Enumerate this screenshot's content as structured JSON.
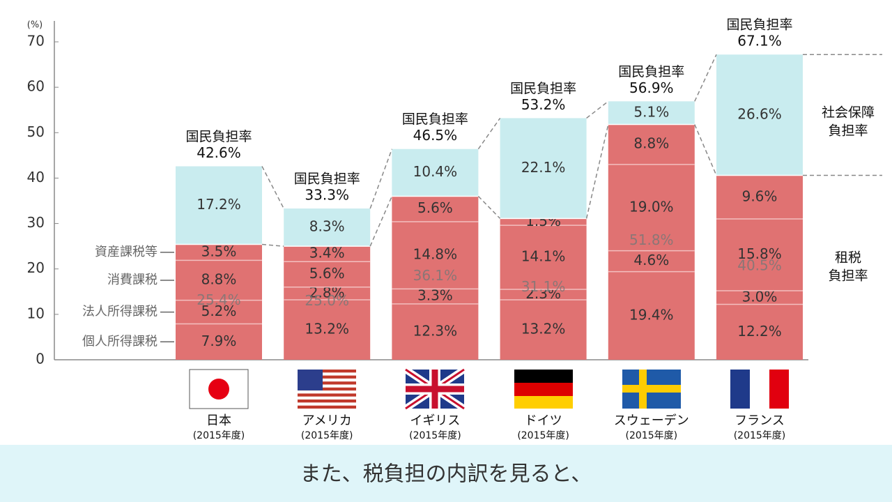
{
  "chart_data": {
    "type": "stacked_bar",
    "y_unit": "(%)",
    "categories": [
      "日本",
      "アメリカ",
      "イギリス",
      "ドイツ",
      "スウェーデン",
      "フランス"
    ],
    "category_notes": [
      "(2015年度)",
      "(2015年度)",
      "(2015年度)",
      "(2015年度)",
      "(2015年度)",
      "(2015年度)"
    ],
    "ylim": [
      0,
      70
    ],
    "yticks": [
      0,
      10,
      20,
      30,
      40,
      50,
      60,
      70
    ],
    "series": [
      {
        "name": "個人所得課税",
        "color": "#e07272",
        "values": [
          7.9,
          13.2,
          12.3,
          13.2,
          19.4,
          12.2
        ],
        "value_labels": [
          "7.9%",
          "13.2%",
          "12.3%",
          "13.2%",
          "19.4%",
          "12.2%"
        ]
      },
      {
        "name": "法人所得課税",
        "color": "#e07272",
        "values": [
          5.2,
          2.8,
          3.3,
          2.3,
          4.6,
          3.0
        ],
        "value_labels": [
          "5.2%",
          "2.8%",
          "3.3%",
          "2.3%",
          "4.6%",
          "3.0%"
        ]
      },
      {
        "name": "消費課税",
        "color": "#e07272",
        "values": [
          8.8,
          5.6,
          14.8,
          14.1,
          19.0,
          15.8
        ],
        "value_labels": [
          "8.8%",
          "5.6%",
          "14.8%",
          "14.1%",
          "19.0%",
          "15.8%"
        ]
      },
      {
        "name": "資産課税等",
        "color": "#e07272",
        "values": [
          3.5,
          3.4,
          5.6,
          1.5,
          8.8,
          9.6
        ],
        "value_labels": [
          "3.5%",
          "3.4%",
          "5.6%",
          "1.5%",
          "8.8%",
          "9.6%"
        ]
      },
      {
        "color": "#c9ecef",
        "values": [
          17.2,
          8.3,
          10.4,
          22.1,
          5.1,
          26.6
        ],
        "value_labels": [
          "17.2%",
          "8.3%",
          "10.4%",
          "22.1%",
          "5.1%",
          "26.6%"
        ]
      }
    ],
    "tax_totals": {
      "values": [
        25.4,
        25.0,
        36.1,
        31.1,
        51.8,
        40.5
      ],
      "value_labels": [
        "25.4%",
        "25.0%",
        "36.1%",
        "31.1%",
        "51.8%",
        "40.5%"
      ]
    },
    "totals": {
      "label": "国民負担率",
      "values": [
        42.6,
        33.3,
        46.5,
        53.2,
        56.9,
        67.1
      ],
      "value_labels": [
        "42.6%",
        "33.3%",
        "46.5%",
        "53.2%",
        "56.9%",
        "67.1%"
      ]
    },
    "right_labels": {
      "social_security": [
        "社会保障",
        "負担率"
      ],
      "tax": [
        "租税",
        "負担率"
      ]
    }
  },
  "caption": "また、税負担の内訳を見ると、"
}
